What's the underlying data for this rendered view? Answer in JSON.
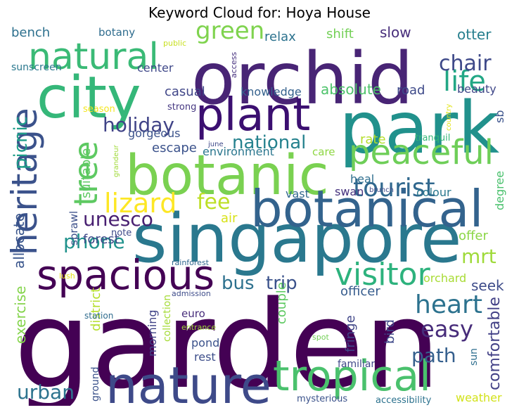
{
  "title": "Keyword Cloud for: Hoya House",
  "words": [
    {
      "text": "garden",
      "color": "#440154"
    },
    {
      "text": "orchid",
      "color": "#482475"
    },
    {
      "text": "park",
      "color": "#21918c"
    },
    {
      "text": "singapore",
      "color": "#2a788e"
    },
    {
      "text": "botanic",
      "color": "#7ad151"
    },
    {
      "text": "botanical",
      "color": "#33638d"
    },
    {
      "text": "city",
      "color": "#35b779"
    },
    {
      "text": "plant",
      "color": "#3b0f70"
    },
    {
      "text": "nature",
      "color": "#3e4a89"
    },
    {
      "text": "tropical",
      "color": "#4ac16d"
    },
    {
      "text": "spacious",
      "color": "#440154"
    },
    {
      "text": "natural",
      "color": "#3aba76"
    },
    {
      "text": "heritage",
      "color": "#3b528b"
    },
    {
      "text": "peaceful",
      "color": "#6ece58"
    },
    {
      "text": "tree",
      "color": "#5ec962"
    },
    {
      "text": "visitor",
      "color": "#2db27d"
    },
    {
      "text": "tourist",
      "color": "#31688e"
    },
    {
      "text": "lizard",
      "color": "#fde725"
    },
    {
      "text": "life",
      "color": "#22a785"
    },
    {
      "text": "chair",
      "color": "#3e4989"
    },
    {
      "text": "green",
      "color": "#7fd34e"
    },
    {
      "text": "heart",
      "color": "#2c728e"
    },
    {
      "text": "easy",
      "color": "#472c7a"
    },
    {
      "text": "national",
      "color": "#26828e"
    },
    {
      "text": "holiday",
      "color": "#404387"
    },
    {
      "text": "picnic",
      "color": "#1f9e89"
    },
    {
      "text": "unesco",
      "color": "#481f71"
    },
    {
      "text": "phone",
      "color": "#20928c"
    },
    {
      "text": "fee",
      "color": "#bddf26"
    },
    {
      "text": "bus",
      "color": "#2d718e"
    },
    {
      "text": "trip",
      "color": "#3b528b"
    },
    {
      "text": "mrt",
      "color": "#9fda3a"
    },
    {
      "text": "path",
      "color": "#355f8d"
    },
    {
      "text": "urban",
      "color": "#2c738e"
    },
    {
      "text": "comfortable",
      "color": "#424086"
    },
    {
      "text": "tranquil",
      "color": "#35b779"
    },
    {
      "text": "allocate",
      "color": "#39558c"
    },
    {
      "text": "suitable",
      "color": "#5ec962"
    },
    {
      "text": "casual",
      "color": "#404688"
    },
    {
      "text": "absolute",
      "color": "#4ec36b"
    },
    {
      "text": "escape",
      "color": "#3b528b"
    },
    {
      "text": "environment",
      "color": "#2a768e"
    },
    {
      "text": "rate",
      "color": "#b5de2b"
    },
    {
      "text": "air",
      "color": "#d8e219"
    },
    {
      "text": "offer",
      "color": "#8bd646"
    },
    {
      "text": "seek",
      "color": "#3e4c8a"
    },
    {
      "text": "officer",
      "color": "#365c8d"
    },
    {
      "text": "forest",
      "color": "#3e4989"
    },
    {
      "text": "slow",
      "color": "#472d7b"
    },
    {
      "text": "shift",
      "color": "#73d056"
    },
    {
      "text": "otter",
      "color": "#277f8e"
    },
    {
      "text": "relax",
      "color": "#2c728e"
    },
    {
      "text": "bench",
      "color": "#2d708e"
    },
    {
      "text": "botany",
      "color": "#2f6c8e"
    },
    {
      "text": "knowledge",
      "color": "#34618d"
    },
    {
      "text": "road",
      "color": "#3e4a89"
    },
    {
      "text": "beauty",
      "color": "#3f4788"
    },
    {
      "text": "center",
      "color": "#3f4889"
    },
    {
      "text": "gorgeous",
      "color": "#3b528b"
    },
    {
      "text": "strong",
      "color": "#453781"
    },
    {
      "text": "care",
      "color": "#8fd744"
    },
    {
      "text": "heal",
      "color": "#2e6e8e"
    },
    {
      "text": "vast",
      "color": "#31688e"
    },
    {
      "text": "swan",
      "color": "#46327e"
    },
    {
      "text": "colour",
      "color": "#2a788e"
    },
    {
      "text": "degree",
      "color": "#4ac16d"
    },
    {
      "text": "sb",
      "color": "#3b528b"
    },
    {
      "text": "exercise",
      "color": "#84d44b"
    },
    {
      "text": "district",
      "color": "#b5de2b"
    },
    {
      "text": "morning",
      "color": "#404387"
    },
    {
      "text": "collection",
      "color": "#a5db36"
    },
    {
      "text": "couple",
      "color": "#5ec962"
    },
    {
      "text": "fringe",
      "color": "#404688"
    },
    {
      "text": "bird",
      "color": "#3e4989"
    },
    {
      "text": "orchard",
      "color": "#a8db34"
    },
    {
      "text": "pond",
      "color": "#3b528b"
    },
    {
      "text": "rest",
      "color": "#3d4e8a"
    },
    {
      "text": "euro",
      "color": "#472d7b"
    },
    {
      "text": "sprawl",
      "color": "#3c508b"
    },
    {
      "text": "note",
      "color": "#3e4a89"
    },
    {
      "text": "ground",
      "color": "#3b528b"
    },
    {
      "text": "familiar",
      "color": "#3f4889"
    },
    {
      "text": "sun",
      "color": "#2e6e8e"
    },
    {
      "text": "weather",
      "color": "#d2e21b"
    },
    {
      "text": "sunscreen",
      "color": "#2a788e"
    },
    {
      "text": "public",
      "color": "#c8e020"
    },
    {
      "text": "access",
      "color": "#46307e"
    },
    {
      "text": "season",
      "color": "#f4e61e"
    },
    {
      "text": "june",
      "color": "#3e4989"
    },
    {
      "text": "grandeur",
      "color": "#a0da39"
    },
    {
      "text": "country",
      "color": "#e2e418"
    },
    {
      "text": "brunch",
      "color": "#3e4a89"
    },
    {
      "text": "rainforest",
      "color": "#31688e"
    },
    {
      "text": "lush",
      "color": "#e5e419"
    },
    {
      "text": "admission",
      "color": "#3e4c8a"
    },
    {
      "text": "station",
      "color": "#2f6c8e"
    },
    {
      "text": "entrance",
      "color": "#a0da39"
    },
    {
      "text": "spot",
      "color": "#73d056"
    },
    {
      "text": "mysterious",
      "color": "#3b528b"
    },
    {
      "text": "accessibility",
      "color": "#2c728e"
    }
  ]
}
